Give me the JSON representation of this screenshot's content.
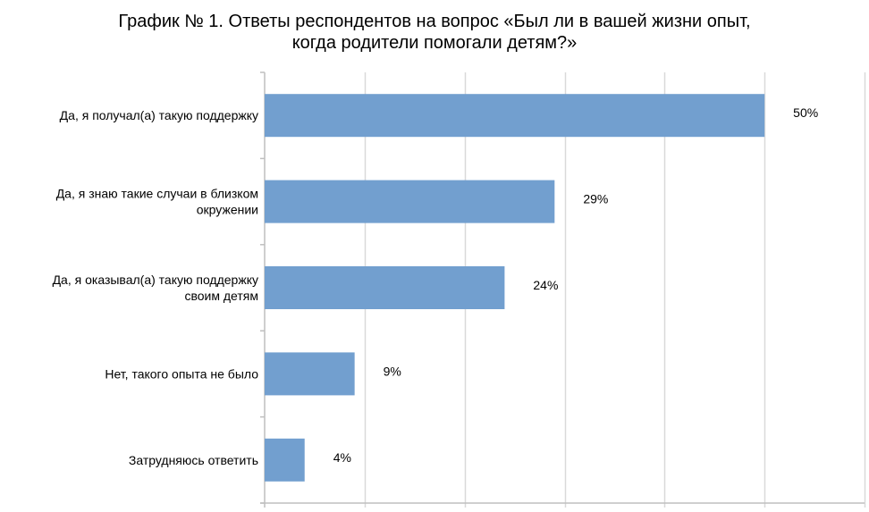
{
  "chart_data": {
    "type": "bar",
    "orientation": "horizontal",
    "title_lines": [
      "График № 1. Ответы респондентов на вопрос «Был ли в вашей жизни опыт,",
      "когда родители помогали детям?»"
    ],
    "categories": [
      [
        "Да, я получал(а) такую поддержку"
      ],
      [
        "Да, я знаю такие случаи в близком",
        "окружении"
      ],
      [
        "Да, я оказывал(а) такую поддержку",
        "своим детям"
      ],
      [
        "Нет, такого опыта не было"
      ],
      [
        "Затрудняюсь ответить"
      ]
    ],
    "values": [
      50,
      29,
      24,
      9,
      4
    ],
    "data_labels": [
      "50%",
      "29%",
      "24%",
      "9%",
      "4%"
    ],
    "xlim": [
      0,
      60
    ],
    "grid_step": 10,
    "grid": true,
    "xlabel": "",
    "ylabel": "",
    "bar_color": "#729FCF",
    "grid_color": "#D9D9D9"
  }
}
